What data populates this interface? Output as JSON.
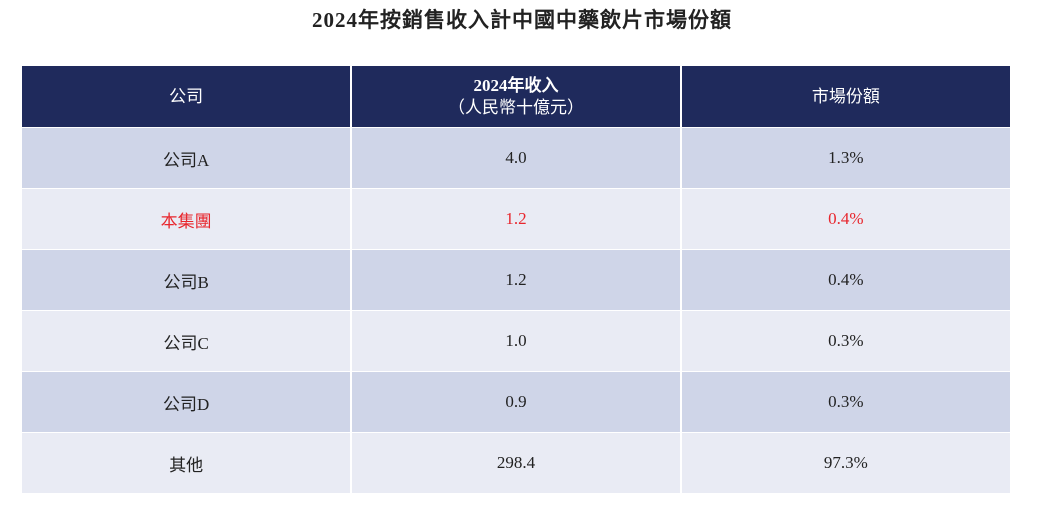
{
  "header": {
    "title": "2024年按銷售收入計中國中藥飲片市場份額"
  },
  "table": {
    "columns": [
      "公司",
      {
        "text": "2024年收入",
        "unit": "（人民幣十億元）"
      },
      "市場份額"
    ],
    "rows": [
      [
        "公司A",
        "4.0",
        "1.3%"
      ],
      [
        "本集團",
        "1.2",
        "0.4%"
      ],
      [
        "公司B",
        "1.2",
        "0.4%"
      ],
      [
        "公司C",
        "1.0",
        "0.3%"
      ],
      [
        "公司D",
        "0.9",
        "0.3%"
      ],
      [
        "其他",
        "298.4",
        "97.3%"
      ]
    ]
  }
}
